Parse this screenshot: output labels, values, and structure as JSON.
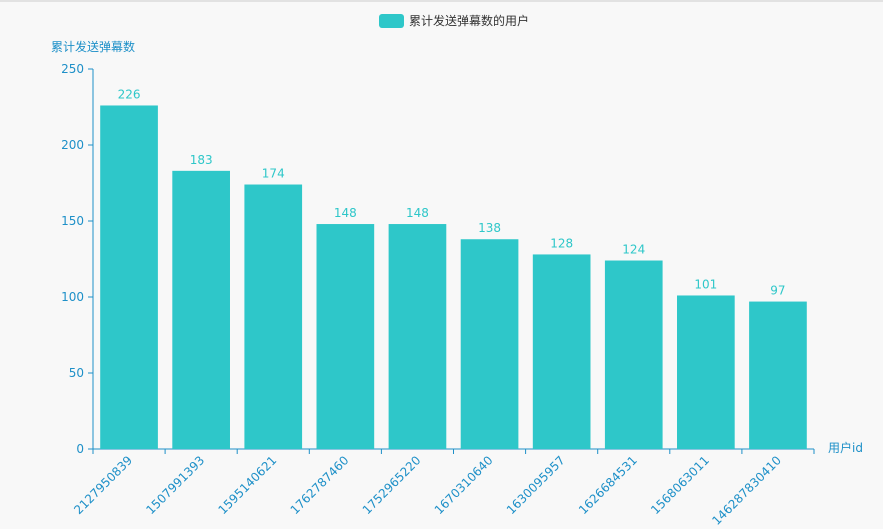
{
  "chart_data": {
    "type": "bar",
    "title": "",
    "legend": {
      "position": "top-center",
      "entries": [
        "累计发送弹幕数的用户"
      ]
    },
    "xlabel": "用户id",
    "ylabel": "累计发送弹幕数",
    "categories": [
      "2127950839",
      "1507991393",
      "1595140621",
      "1762787460",
      "1752965220",
      "1670310640",
      "1630095957",
      "1626684531",
      "1568063011",
      "1462878304​10"
    ],
    "series": [
      {
        "name": "累计发送弹幕数的用户",
        "values": [
          226,
          183,
          174,
          148,
          148,
          138,
          128,
          124,
          101,
          97
        ]
      }
    ],
    "ylim": [
      0,
      250
    ],
    "yticks": [
      "0",
      "50",
      "100",
      "150",
      "200",
      "250"
    ],
    "grid": false,
    "colors": {
      "bar": "#2ec7c9",
      "axis": "#1e90c8",
      "text": "#333333",
      "background": "#f8f8f8"
    }
  }
}
